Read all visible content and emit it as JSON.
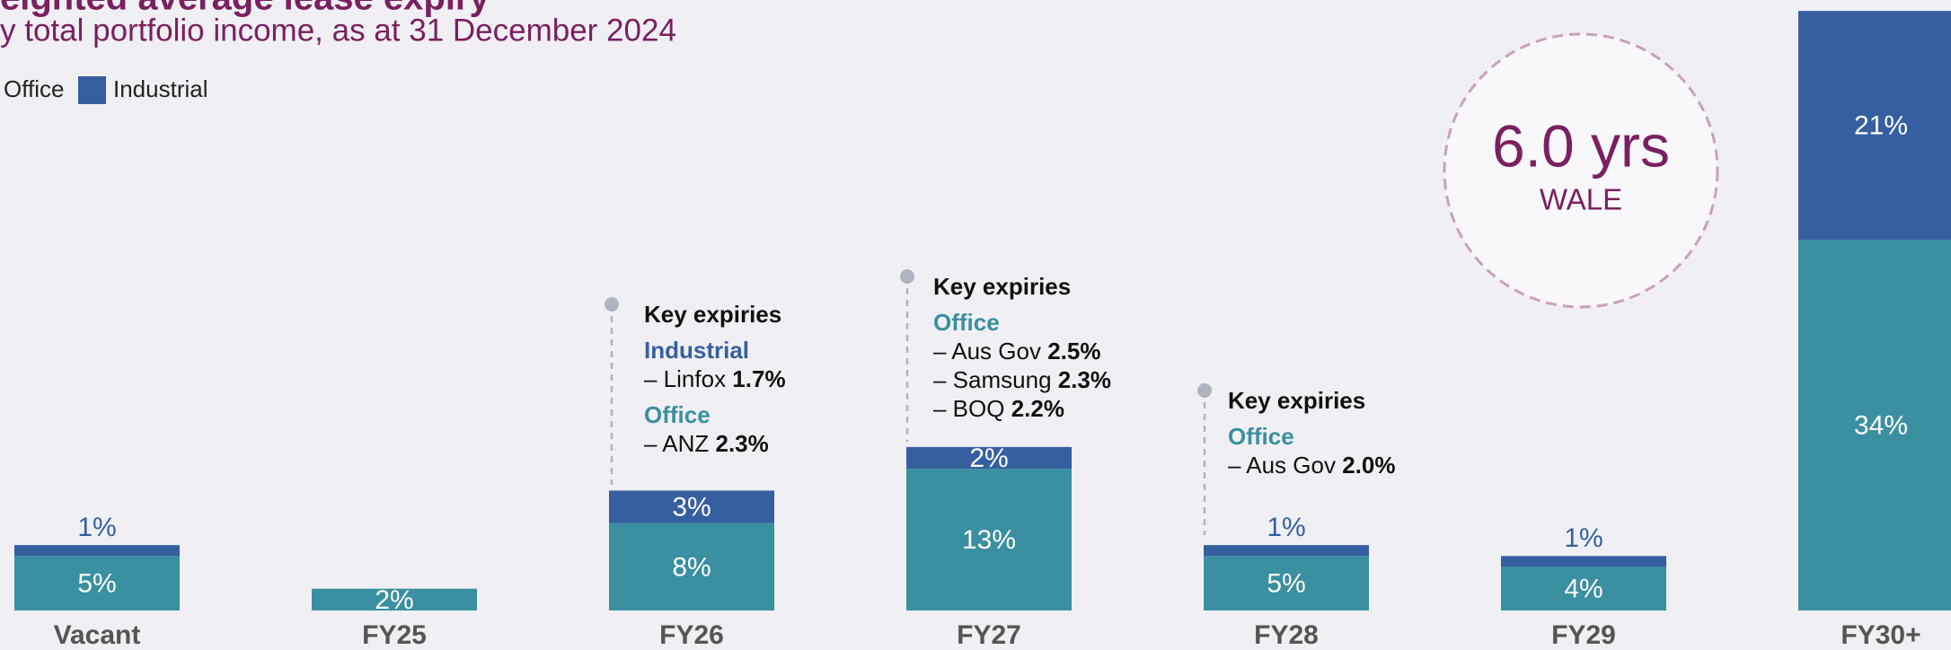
{
  "chart_data": {
    "type": "stacked_bar",
    "title": "eighted average lease expiry",
    "subtitle": "y total portfolio income, as at 31 December 2024",
    "categories": [
      "Vacant",
      "FY25",
      "FY26",
      "FY27",
      "FY28",
      "FY29",
      "FY30+"
    ],
    "series": [
      {
        "name": "Office",
        "color": "#3a8fa0",
        "values": [
          5,
          2,
          8,
          13,
          5,
          4,
          34
        ],
        "value_labels": [
          "5%",
          "2%",
          "8%",
          "13%",
          "5%",
          "4%",
          "34%"
        ]
      },
      {
        "name": "Industrial",
        "color": "#365fa0",
        "values": [
          1,
          null,
          3,
          2,
          1,
          1,
          21
        ],
        "value_labels": [
          "1%",
          null,
          "3%",
          "2%",
          "1%",
          "1%",
          "21%"
        ]
      }
    ],
    "ylim": [
      0,
      56
    ],
    "wale": {
      "value": "6.0 yrs",
      "label": "WALE"
    },
    "annotations": [
      {
        "title": "Key expiries",
        "groups": [
          {
            "name": "Industrial",
            "items": [
              {
                "label": "– Linfox ",
                "value": "1.7%"
              }
            ]
          },
          {
            "name": "Office",
            "items": [
              {
                "label": "– ANZ ",
                "value": "2.3%"
              }
            ]
          }
        ]
      },
      {
        "title": "Key expiries",
        "groups": [
          {
            "name": "Office",
            "items": [
              {
                "label": "– Aus Gov ",
                "value": "2.5%"
              },
              {
                "label": "– Samsung ",
                "value": "2.3%"
              },
              {
                "label": "– BOQ ",
                "value": "2.2%"
              }
            ]
          }
        ]
      },
      {
        "title": "Key expiries",
        "groups": [
          {
            "name": "Office",
            "items": [
              {
                "label": "– Aus Gov ",
                "value": "2.0%"
              }
            ]
          }
        ]
      }
    ]
  }
}
